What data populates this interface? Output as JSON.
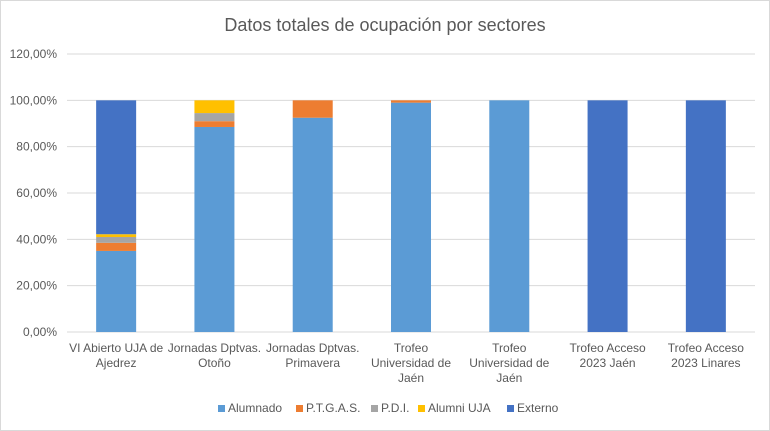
{
  "chart_data": {
    "type": "bar",
    "stacked": true,
    "title": "Datos totales de ocupación por sectores",
    "categories": [
      [
        "VI Abierto UJA de",
        "Ajedrez"
      ],
      [
        "Jornadas Dptvas.",
        "Otoño"
      ],
      [
        "Jornadas Dptvas.",
        "Primavera"
      ],
      [
        "Trofeo",
        "Universidad de",
        "Jaén"
      ],
      [
        "Trofeo",
        "Universidad de",
        "Jaén"
      ],
      [
        "Trofeo Acceso",
        "2023 Jaén"
      ],
      [
        "Trofeo Acceso",
        "2023 Linares"
      ]
    ],
    "series": [
      {
        "name": "Alumnado",
        "color": "#5b9bd5",
        "values": [
          0.35,
          0.885,
          0.925,
          0.99,
          1.0,
          0.0,
          0.0
        ]
      },
      {
        "name": "P.T.G.A.S.",
        "color": "#ed7d31",
        "values": [
          0.035,
          0.025,
          0.075,
          0.01,
          0.0,
          0.0,
          0.0
        ]
      },
      {
        "name": "P.D.I.",
        "color": "#a5a5a5",
        "values": [
          0.025,
          0.035,
          0.0,
          0.0,
          0.0,
          0.0,
          0.0
        ]
      },
      {
        "name": "Alumni UJA",
        "color": "#ffc000",
        "values": [
          0.012,
          0.055,
          0.0,
          0.0,
          0.0,
          0.0,
          0.0
        ]
      },
      {
        "name": "Externo",
        "color": "#4472c4",
        "values": [
          0.578,
          0.0,
          0.0,
          0.0,
          0.0,
          1.0,
          1.0
        ]
      }
    ],
    "yticks": [
      "0,00%",
      "20,00%",
      "40,00%",
      "60,00%",
      "80,00%",
      "100,00%",
      "120,00%"
    ],
    "ylim": [
      0,
      1.2
    ],
    "grid": true,
    "legend": "bottom"
  }
}
